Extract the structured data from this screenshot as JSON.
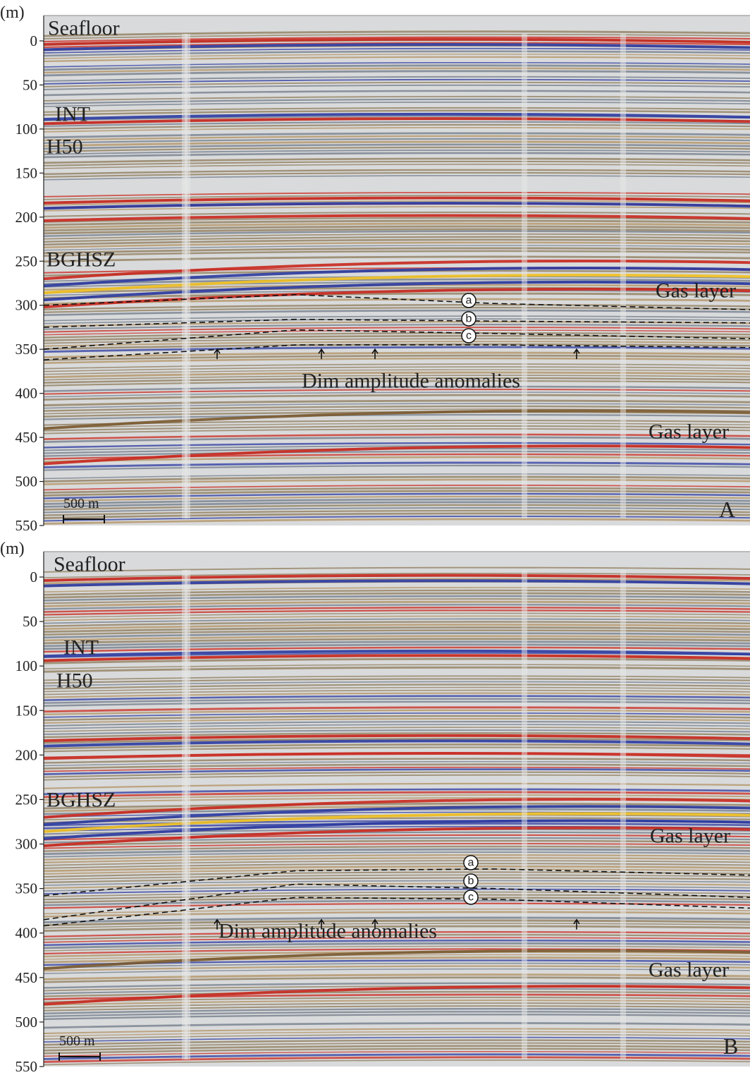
{
  "panels": [
    {
      "unit": "(m)",
      "ylim": [
        0,
        550
      ],
      "yticks": [
        0,
        50,
        100,
        150,
        200,
        250,
        300,
        350,
        400,
        450,
        500,
        550
      ],
      "labels": {
        "seafloor": "Seafloor",
        "int": "INT",
        "h50": "H50",
        "bghsz": "BGHSZ",
        "gas_upper": "Gas layer",
        "gas_lower": "Gas layer",
        "dim": "Dim amplitude anomalies",
        "a": "a",
        "b": "b",
        "c": "c",
        "scale": "500 m",
        "panel": "A"
      }
    },
    {
      "unit": "(m)",
      "ylim": [
        0,
        550
      ],
      "yticks": [
        0,
        50,
        100,
        150,
        200,
        250,
        300,
        350,
        400,
        450,
        500,
        550
      ],
      "labels": {
        "seafloor": "Seafloor",
        "int": "INT",
        "h50": "H50",
        "bghsz": "BGHSZ",
        "gas_upper": "Gas layer",
        "gas_lower": "Gas layer",
        "dim": "Dim amplitude anomalies",
        "a": "a",
        "b": "b",
        "c": "c",
        "scale": "500 m",
        "panel": "B"
      }
    }
  ]
}
